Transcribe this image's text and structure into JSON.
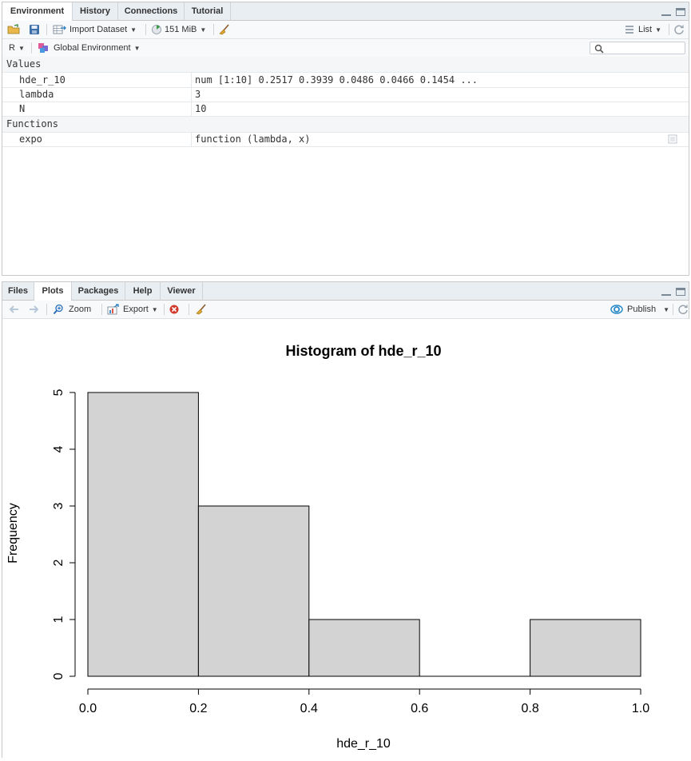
{
  "env_pane": {
    "tabs": [
      "Environment",
      "History",
      "Connections",
      "Tutorial"
    ],
    "active_tab": "Environment",
    "toolbar": {
      "import_label": "Import Dataset",
      "memory_label": "151 MiB",
      "view_label": "List",
      "lang_label": "R",
      "scope_label": "Global Environment",
      "search_placeholder": ""
    },
    "sections": {
      "values_label": "Values",
      "functions_label": "Functions"
    },
    "values": [
      {
        "name": "hde_r_10",
        "value": "num [1:10] 0.2517 0.3939 0.0486 0.0466 0.1454 ..."
      },
      {
        "name": "lambda",
        "value": "3"
      },
      {
        "name": "N",
        "value": "10"
      }
    ],
    "functions": [
      {
        "name": "expo",
        "value": "function (lambda, x)"
      }
    ]
  },
  "plot_pane": {
    "tabs": [
      "Files",
      "Plots",
      "Packages",
      "Help",
      "Viewer"
    ],
    "active_tab": "Plots",
    "toolbar": {
      "zoom_label": "Zoom",
      "export_label": "Export",
      "publish_label": "Publish"
    }
  },
  "colors": {
    "bar_fill": "#d3d3d3",
    "bar_stroke": "#000000",
    "tab_bg": "#e9eef3",
    "toolbar_bg": "#f7f9fb"
  },
  "chart_data": {
    "type": "bar",
    "title": "Histogram of hde_r_10",
    "xlabel": "hde_r_10",
    "ylabel": "Frequency",
    "bins": [
      [
        0.0,
        0.2
      ],
      [
        0.2,
        0.4
      ],
      [
        0.4,
        0.6
      ],
      [
        0.6,
        0.8
      ],
      [
        0.8,
        1.0
      ]
    ],
    "values": [
      5,
      3,
      1,
      0,
      1
    ],
    "xlim": [
      0.0,
      1.0
    ],
    "ylim": [
      0,
      5
    ],
    "x_ticks": [
      "0.0",
      "0.2",
      "0.4",
      "0.6",
      "0.8",
      "1.0"
    ],
    "y_ticks": [
      "0",
      "1",
      "2",
      "3",
      "4",
      "5"
    ],
    "grid": false,
    "legend": "none"
  }
}
